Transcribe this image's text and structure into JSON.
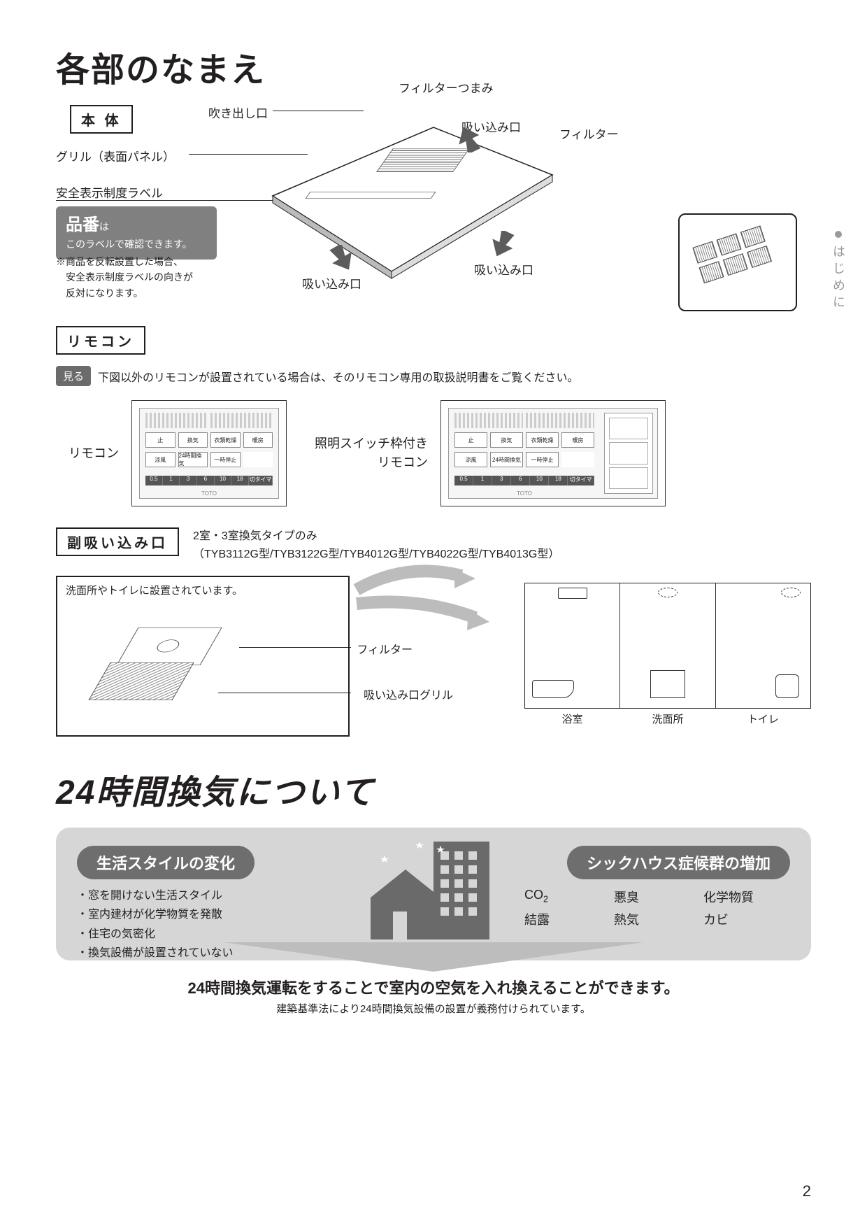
{
  "side_tab": {
    "dot": "●",
    "text": "はじめに"
  },
  "title1": "各部のなまえ",
  "section_honbody": {
    "label": "本 体",
    "callouts": {
      "blowout": "吹き出し口",
      "grill": "グリル（表面パネル）",
      "safety_label": "安全表示制度ラベル",
      "filter_knob": "フィルターつまみ",
      "inlet": "吸い込み口",
      "filter": "フィルター"
    },
    "gray_note": {
      "big": "品番",
      "suffix": "は",
      "line2": "このラベルで確認できます。"
    },
    "footnote": "※商品を反転設置した場合、\n　安全表示制度ラベルの向きが\n　反対になります。"
  },
  "section_remote": {
    "label": "リモコン",
    "miru": "見る",
    "note": "下図以外のリモコンが設置されている場合は、そのリモコン専用の取扱説明書をご覧ください。",
    "left_label": "リモコン",
    "right_label": "照明スイッチ枠付き\nリモコン",
    "btns_row1": [
      "止",
      "換気",
      "衣類乾燥",
      "暖房"
    ],
    "btns_row2": [
      "涼風",
      "24時間換気",
      "一時停止",
      ""
    ],
    "bar_nums": [
      "0.5",
      "1",
      "3",
      "6",
      "10",
      "18"
    ],
    "bar_right": "切タイマー",
    "brand": "TOTO"
  },
  "section_subinlet": {
    "label": "副吸い込み口",
    "desc_line1": "2室・3室換気タイプのみ",
    "desc_line2": "（TYB3112G型/TYB3122G型/TYB4012G型/TYB4022G型/TYB4013G型）",
    "box_title": "洗面所やトイレに設置されています。",
    "callout_filter": "フィルター",
    "callout_grill": "吸い込み口グリル",
    "rooms": [
      "浴室",
      "洗面所",
      "トイレ"
    ]
  },
  "title2": "24時間換気について",
  "section_24h": {
    "pill_left": "生活スタイルの変化",
    "pill_right": "シックハウス症候群の増加",
    "life_items": [
      "・窓を開けない生活スタイル",
      "・室内建材が化学物質を発散",
      "・住宅の気密化",
      "・換気設備が設置されていない"
    ],
    "sick_items": [
      "CO₂",
      "悪臭",
      "化学物質",
      "結露",
      "熱気",
      "カビ"
    ],
    "conclusion": "24時間換気運転をすることで室内の空気を入れ換えることができます。",
    "conclusion_sub": "建築基準法により24時間換気設備の設置が義務付けられています。"
  },
  "page_number": "2",
  "colors": {
    "text": "#231f20",
    "gray_pill": "#808080",
    "mid_gray": "#6e6e6e",
    "panel_gray": "#d6d6d6",
    "side_gray": "#9a9a9a"
  }
}
